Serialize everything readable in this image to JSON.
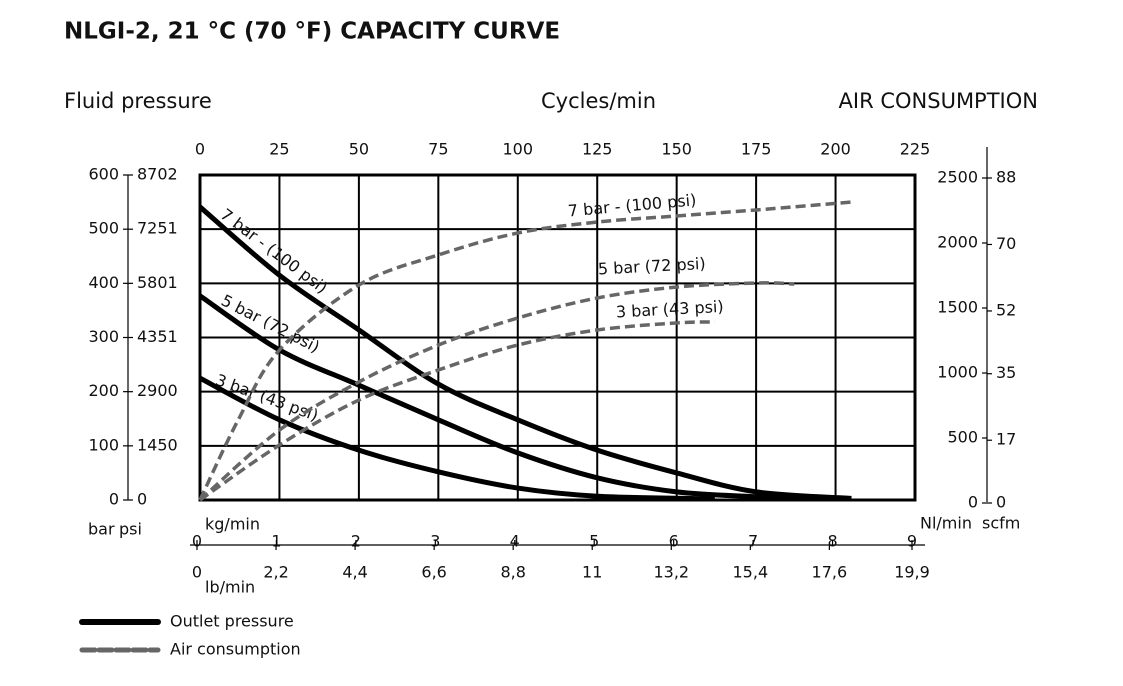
{
  "chart_data": {
    "type": "line",
    "title": "NLGI-2, 21 °C (70 °F) CAPACITY CURVE",
    "y_label": "Fluid pressure",
    "x_label": "Cycles/min",
    "y2_label": "AIR CONSUMPTION",
    "grid": true,
    "xlim": [
      0,
      225
    ],
    "xticks": [
      0,
      25,
      50,
      75,
      100,
      125,
      150,
      175,
      200,
      225
    ],
    "ylim": [
      0,
      600
    ],
    "yticks": [
      0,
      100,
      200,
      300,
      400,
      500,
      600
    ],
    "y_unit": "bar",
    "y_psi_unit": "psi",
    "y_psi_lim": [
      0,
      8702
    ],
    "y_psi_ticks": [
      0,
      1450,
      2900,
      4351,
      5801,
      7251,
      8702
    ],
    "y2lim": [
      0,
      2500
    ],
    "y2ticks": [
      0,
      500,
      1000,
      1500,
      2000,
      2500
    ],
    "y2_unit": "Nl/min",
    "y2_scfm_unit": "scfm",
    "y2_scfm_lim": [
      0,
      88
    ],
    "y2_scfm_ticks": [
      0,
      17,
      35,
      52,
      70,
      88
    ],
    "x_kg_label": "kg/min",
    "x_kg_lim": [
      0,
      9
    ],
    "x_kg_ticks": [
      0,
      1,
      2,
      3,
      4,
      5,
      6,
      7,
      8,
      9
    ],
    "x_lb_label": "lb/min",
    "x_lb_lim": [
      0,
      19.9
    ],
    "x_lb_ticks": [
      0,
      {
        "value": 2.2,
        "label": "2,2"
      },
      {
        "value": 4.4,
        "label": "4,4"
      },
      {
        "value": 6.6,
        "label": "6,6"
      },
      {
        "value": 8.8,
        "label": "8,8"
      },
      11,
      {
        "value": 13.2,
        "label": "13,2"
      },
      {
        "value": 15.4,
        "label": "15,4"
      },
      {
        "value": 17.6,
        "label": "17,6"
      },
      {
        "value": 19.9,
        "label": "19,9"
      }
    ],
    "series": [
      {
        "name": "7 bar - (100 psi)",
        "color": "#000000",
        "x": [
          0,
          25,
          50,
          75,
          100,
          125,
          150,
          175,
          205
        ],
        "values": [
          541,
          415,
          314,
          214,
          148,
          92,
          50,
          15,
          3
        ]
      },
      {
        "name": "5 bar (72 psi)",
        "color": "#000000",
        "x": [
          0,
          25,
          50,
          75,
          100,
          125,
          150,
          175,
          190
        ],
        "values": [
          377,
          277,
          212,
          148,
          87,
          41,
          15,
          6,
          2
        ]
      },
      {
        "name": "3 bar (43 psi)",
        "color": "#000000",
        "x": [
          0,
          25,
          50,
          75,
          100,
          125,
          162
        ],
        "values": [
          225,
          148,
          92,
          52,
          22,
          7,
          2
        ]
      },
      {
        "name": "7 bar - (100 psi)",
        "color": "#666666",
        "dashed": true,
        "axis": "y2",
        "x": [
          0,
          12,
          25,
          50,
          75,
          100,
          125,
          150,
          175,
          205
        ],
        "values": [
          0,
          615,
          1154,
          1654,
          1885,
          2054,
          2138,
          2185,
          2231,
          2292
        ]
      },
      {
        "name": "5 bar (72 psi)",
        "color": "#666666",
        "dashed": true,
        "axis": "y2",
        "x": [
          0,
          25,
          50,
          75,
          100,
          125,
          150,
          175,
          187
        ],
        "values": [
          0,
          538,
          908,
          1192,
          1400,
          1554,
          1638,
          1669,
          1662
        ]
      },
      {
        "name": "3 bar (43 psi)",
        "color": "#666666",
        "dashed": true,
        "axis": "y2",
        "x": [
          0,
          25,
          50,
          75,
          100,
          125,
          150,
          162
        ],
        "values": [
          0,
          423,
          769,
          1000,
          1192,
          1308,
          1362,
          1369
        ]
      }
    ],
    "legend": [
      {
        "name": "Outlet pressure",
        "color": "#000000"
      },
      {
        "name": "Air consumption",
        "color": "#666666",
        "dashed": true
      }
    ]
  }
}
